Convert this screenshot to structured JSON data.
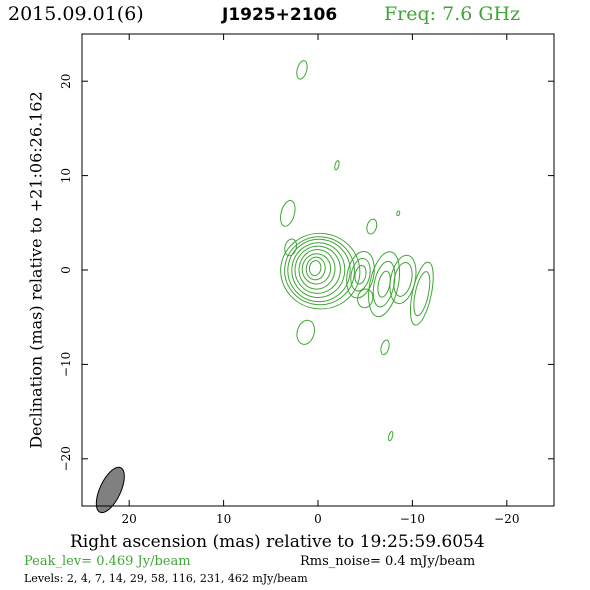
{
  "header": {
    "date_label": "2015.09.01(6)",
    "source_name": "J1925+2106",
    "frequency_label": "Freq: 7.6 GHz"
  },
  "footer": {
    "peak_label": "Peak_lev=  0.469 Jy/beam",
    "rms_label": "Rms_noise=  0.4 mJy/beam",
    "levels_label": "Levels:  2,  4,  7,  14,  29,  58,  116,  231,  462 mJy/beam"
  },
  "colors": {
    "contour": "#3fa535",
    "beam": "#808080",
    "axes": "#000000"
  },
  "chart_data": {
    "type": "contour",
    "xlabel": "Right ascension (mas) relative to 19:25:59.6054",
    "ylabel": "Declination (mas) relative to +21:06:26.162",
    "xlim": [
      25,
      -25
    ],
    "ylim": [
      -25,
      25
    ],
    "x_ticks": [
      20,
      10,
      0,
      -10,
      -20
    ],
    "y_ticks": [
      20,
      10,
      0,
      -10,
      -20
    ],
    "x_tick_labels": [
      "20",
      "10",
      "0",
      "−10",
      "−20"
    ],
    "y_tick_labels": [
      "20",
      "10",
      "0",
      "−10",
      "−20"
    ],
    "contour_levels_mJy": [
      2,
      4,
      7,
      14,
      29,
      58,
      116,
      231,
      462
    ],
    "peak_Jy_per_beam": 0.469,
    "rms_mJy_per_beam": 0.4,
    "beam": {
      "x": 22,
      "y": -23.3,
      "major": 2.6,
      "minor": 1.1,
      "pa_deg": 25
    },
    "core": {
      "x": 0.3,
      "y": 0.2,
      "rings": [
        {
          "a": 0.6,
          "b": 0.8
        },
        {
          "a": 1.0,
          "b": 1.2
        },
        {
          "a": 1.5,
          "b": 1.6
        },
        {
          "a": 1.9,
          "b": 2.1
        },
        {
          "a": 2.4,
          "b": 2.5
        },
        {
          "a": 2.8,
          "b": 2.9
        },
        {
          "a": 3.3,
          "b": 3.3
        },
        {
          "a": 3.7,
          "b": 3.6
        },
        {
          "a": 4.2,
          "b": 4.0
        }
      ]
    },
    "jet_components": [
      {
        "x": -4.5,
        "y": -0.5,
        "a": 1.4,
        "b": 2.5,
        "rings": 3
      },
      {
        "x": -7.0,
        "y": -1.5,
        "a": 1.5,
        "b": 3.5,
        "rings": 3
      },
      {
        "x": -9.0,
        "y": -1.0,
        "a": 1.3,
        "b": 2.6,
        "rings": 2
      },
      {
        "x": -11.0,
        "y": -2.5,
        "a": 1.0,
        "b": 3.4,
        "rings": 2
      },
      {
        "x": -5.0,
        "y": -3.0,
        "a": 0.8,
        "b": 1.0,
        "rings": 1
      }
    ],
    "islands": [
      {
        "x": 1.7,
        "y": 21.2,
        "a": 0.5,
        "b": 1.0
      },
      {
        "x": -2.0,
        "y": 11.1,
        "a": 0.2,
        "b": 0.5
      },
      {
        "x": 3.2,
        "y": 6.0,
        "a": 0.7,
        "b": 1.4
      },
      {
        "x": 2.9,
        "y": 2.4,
        "a": 0.6,
        "b": 0.9
      },
      {
        "x": -5.7,
        "y": 4.6,
        "a": 0.5,
        "b": 0.8
      },
      {
        "x": -8.5,
        "y": 6.0,
        "a": 0.15,
        "b": 0.25
      },
      {
        "x": 1.3,
        "y": -6.6,
        "a": 0.9,
        "b": 1.3
      },
      {
        "x": -7.1,
        "y": -8.2,
        "a": 0.4,
        "b": 0.8
      },
      {
        "x": -7.7,
        "y": -17.6,
        "a": 0.2,
        "b": 0.5
      }
    ]
  }
}
